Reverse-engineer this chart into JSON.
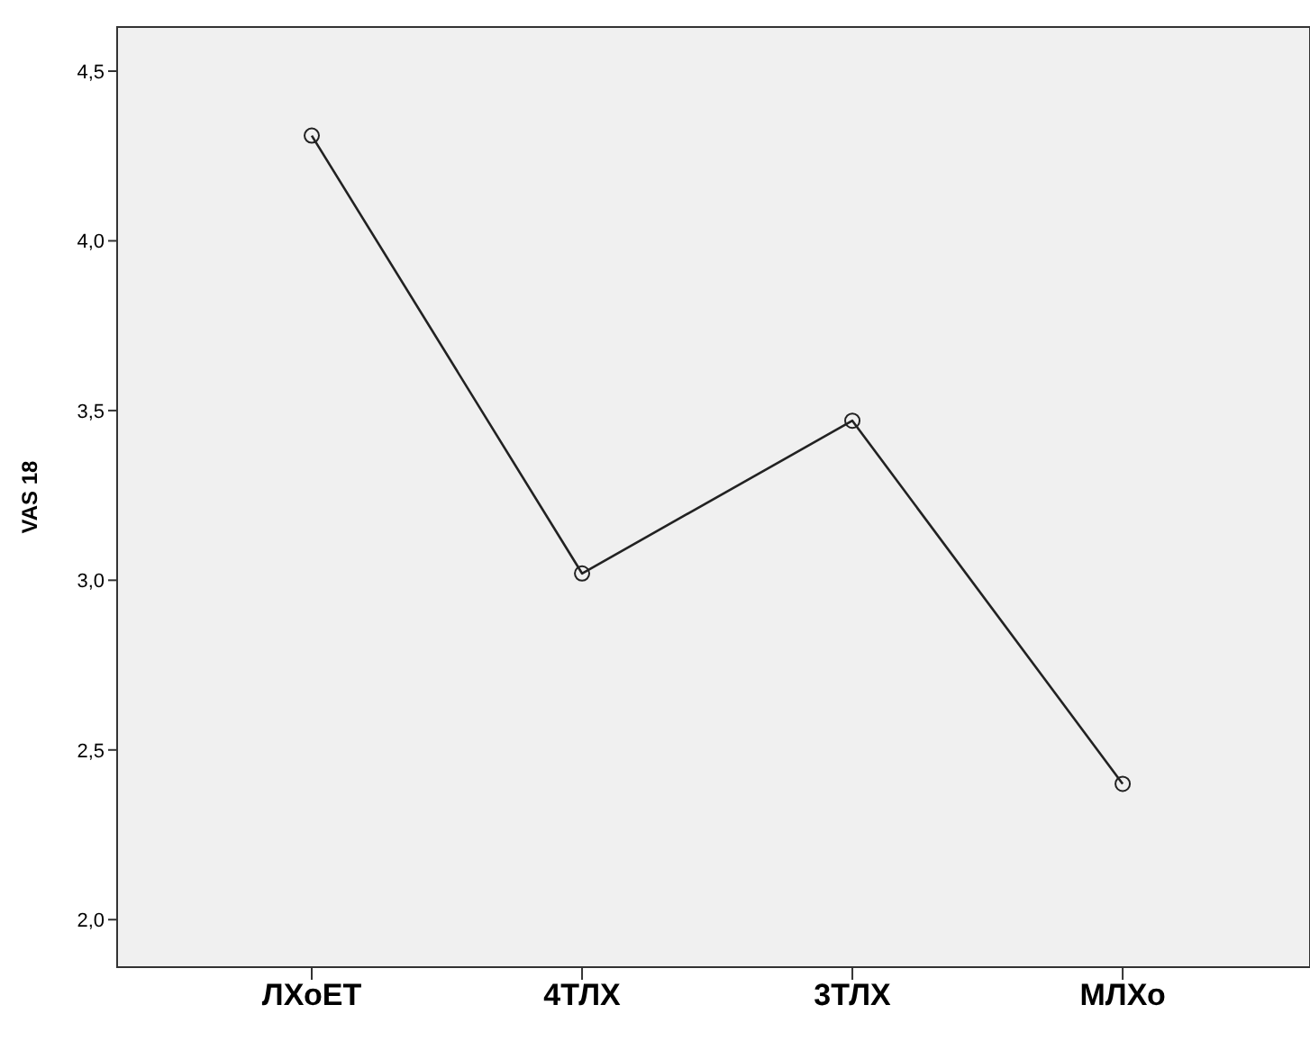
{
  "chart_data": {
    "type": "line",
    "ylabel": "VAS 18",
    "categories": [
      "ЛХоЕТ",
      "4ТЛХ",
      "3ТЛХ",
      "МЛХо"
    ],
    "series": [
      {
        "color": "#222222",
        "values": [
          4.31,
          3.02,
          3.47,
          2.4
        ]
      }
    ],
    "ylim": [
      1.86,
      4.63
    ],
    "yticks": [
      {
        "value": 2.0,
        "label": "2,0"
      },
      {
        "value": 2.5,
        "label": "2,5"
      },
      {
        "value": 3.0,
        "label": "3,0"
      },
      {
        "value": 3.5,
        "label": "3,5"
      },
      {
        "value": 4.0,
        "label": "4,0"
      },
      {
        "value": 4.5,
        "label": "4,5"
      }
    ],
    "marker": "circle",
    "line_style": "solid"
  }
}
